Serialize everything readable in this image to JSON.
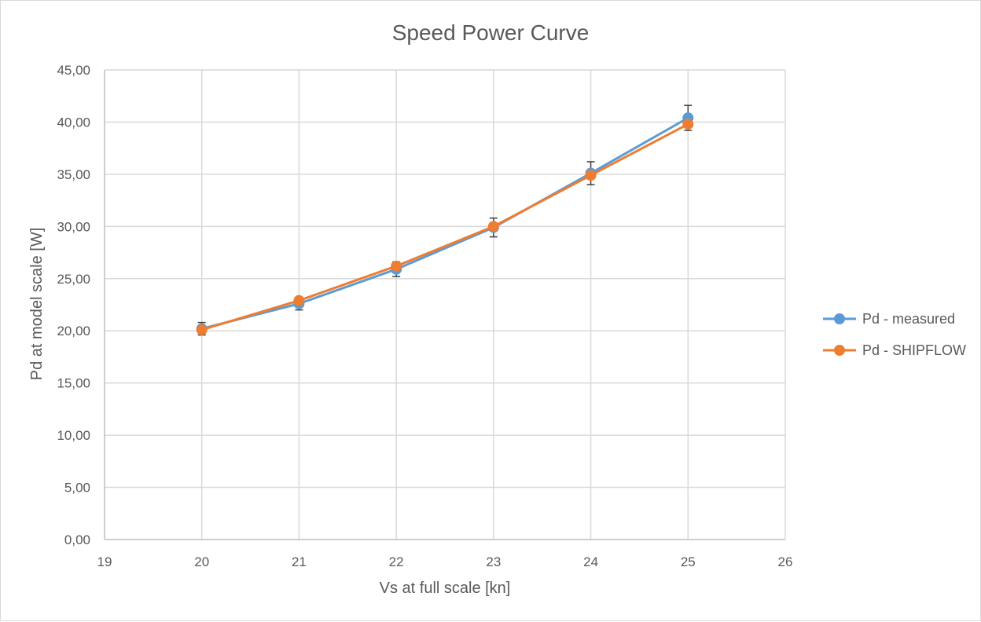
{
  "chart_data": {
    "type": "line",
    "title": "Speed Power Curve",
    "xlabel": "Vs at full scale [kn]",
    "ylabel": "Pd at model scale [W]",
    "xlim": [
      19,
      26
    ],
    "ylim": [
      0,
      45
    ],
    "x_ticks": [
      "19",
      "20",
      "21",
      "22",
      "23",
      "24",
      "25",
      "26"
    ],
    "y_ticks": [
      "0,00",
      "5,00",
      "10,00",
      "15,00",
      "20,00",
      "25,00",
      "30,00",
      "35,00",
      "40,00",
      "45,00"
    ],
    "grid": true,
    "legend_position": "right",
    "x": [
      20,
      21,
      22,
      23,
      24,
      25
    ],
    "series": [
      {
        "name": "Pd - measured",
        "color": "#5b9bd5",
        "values": [
          20.2,
          22.6,
          25.9,
          29.9,
          35.1,
          40.4
        ],
        "error": [
          0.6,
          0.6,
          0.7,
          0.9,
          1.1,
          1.2
        ]
      },
      {
        "name": "Pd - SHIPFLOW",
        "color": "#ed7d31",
        "values": [
          20.1,
          22.9,
          26.2,
          30.0,
          34.9,
          39.8
        ]
      }
    ]
  }
}
